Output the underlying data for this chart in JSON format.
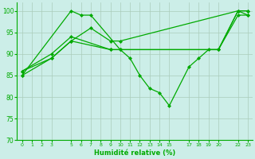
{
  "bg_color": "#cceee8",
  "grid_color": "#aaccbb",
  "line_color": "#00aa00",
  "marker": "D",
  "markersize": 2,
  "linewidth": 0.9,
  "xlabel": "Humidité relative (%)",
  "xlabel_color": "#00aa00",
  "tick_color": "#00aa00",
  "ylim": [
    70,
    102
  ],
  "yticks": [
    70,
    75,
    80,
    85,
    90,
    95,
    100
  ],
  "xticks": [
    0,
    1,
    2,
    3,
    5,
    6,
    7,
    8,
    9,
    10,
    11,
    12,
    13,
    14,
    15,
    17,
    18,
    19,
    20,
    22,
    23
  ],
  "xlim": [
    -0.5,
    23.5
  ],
  "line1_x": [
    0,
    5,
    6,
    7,
    10,
    11,
    12,
    13,
    14,
    15,
    17,
    18,
    19,
    20,
    22,
    23
  ],
  "line1_y": [
    85,
    100,
    99,
    99,
    91,
    89,
    85,
    82,
    81,
    78,
    87,
    89,
    91,
    91,
    100,
    99
  ],
  "line2_x": [
    0,
    3,
    5,
    7,
    9,
    10,
    22,
    23
  ],
  "line2_y": [
    86,
    89,
    93,
    96,
    93,
    93,
    100,
    100
  ],
  "line3_x": [
    0,
    3,
    5,
    9,
    10,
    20,
    22,
    23
  ],
  "line3_y": [
    85,
    89,
    93,
    91,
    91,
    91,
    99,
    99
  ],
  "line4_x": [
    0,
    3,
    5,
    9,
    10,
    20,
    22,
    23
  ],
  "line4_y": [
    86,
    90,
    94,
    91,
    91,
    91,
    100,
    100
  ]
}
